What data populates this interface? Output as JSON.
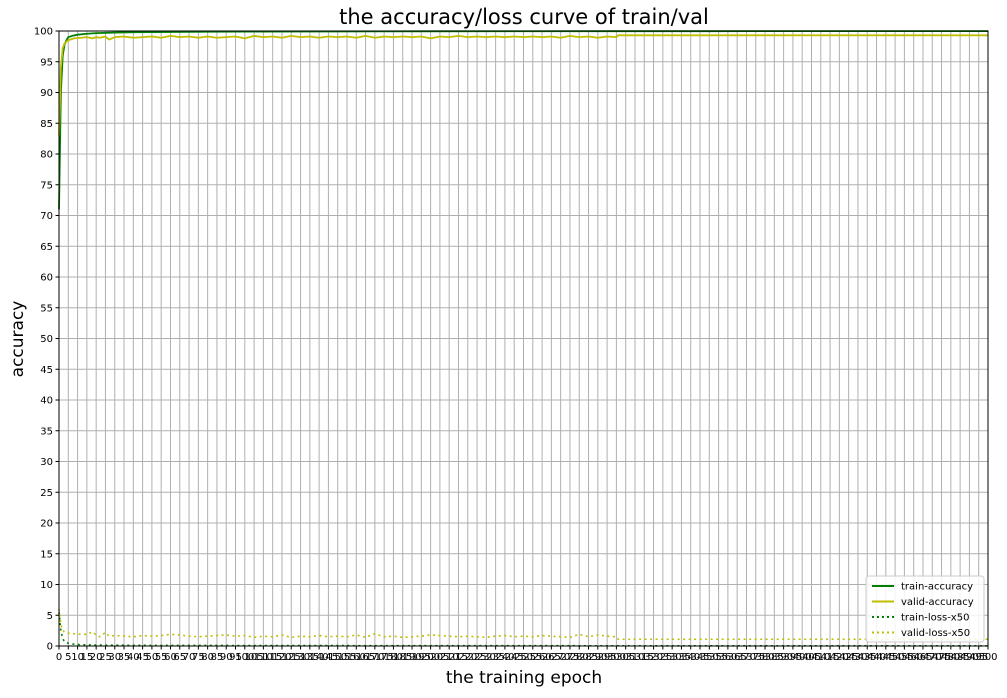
{
  "chart_data": {
    "type": "line",
    "title": "the accuracy/loss curve of train/val",
    "xlabel": "the training epoch",
    "ylabel": "accuracy",
    "xlim": [
      0,
      500
    ],
    "ylim": [
      0,
      100
    ],
    "x_tick_step": 5,
    "y_tick_step": 5,
    "grid": true,
    "legend_position": "bottom-right",
    "series": [
      {
        "name": "train-accuracy",
        "color": "#008000",
        "style": "solid",
        "x": [
          0,
          1,
          2,
          3,
          4,
          5,
          7,
          10,
          15,
          20,
          30,
          40,
          60,
          80,
          100,
          150,
          200,
          250,
          300,
          350,
          400,
          450,
          500
        ],
        "y": [
          71,
          90,
          96,
          97.8,
          98.5,
          99.0,
          99.2,
          99.4,
          99.55,
          99.65,
          99.75,
          99.8,
          99.85,
          99.88,
          99.9,
          99.93,
          99.95,
          99.96,
          99.97,
          99.97,
          99.98,
          99.98,
          99.98
        ]
      },
      {
        "name": "valid-accuracy",
        "color": "#bfbf00",
        "style": "solid",
        "x": [
          0,
          1,
          2,
          3,
          5,
          8,
          12,
          15,
          18,
          20,
          22,
          25,
          27,
          30,
          35,
          40,
          45,
          50,
          55,
          60,
          65,
          70,
          75,
          80,
          85,
          90,
          95,
          100,
          105,
          110,
          115,
          120,
          125,
          130,
          135,
          140,
          145,
          150,
          155,
          160,
          165,
          170,
          175,
          180,
          185,
          190,
          195,
          200,
          205,
          210,
          215,
          220,
          225,
          230,
          235,
          240,
          245,
          250,
          255,
          260,
          265,
          270,
          275,
          280,
          285,
          290,
          295,
          300,
          301,
          350,
          400,
          450,
          500
        ],
        "y": [
          83,
          94,
          97.2,
          98.0,
          98.5,
          98.8,
          98.9,
          99.0,
          98.8,
          99.0,
          98.9,
          99.1,
          98.6,
          99.0,
          99.1,
          98.9,
          99.0,
          99.1,
          98.9,
          99.2,
          99.0,
          99.1,
          98.9,
          99.1,
          98.9,
          99.0,
          99.1,
          98.8,
          99.2,
          99.0,
          99.1,
          98.9,
          99.2,
          99.0,
          99.1,
          98.9,
          99.1,
          99.0,
          99.1,
          98.9,
          99.2,
          98.9,
          99.1,
          99.0,
          99.1,
          99.0,
          99.1,
          98.8,
          99.1,
          99.0,
          99.2,
          99.0,
          99.1,
          99.0,
          99.1,
          99.0,
          99.1,
          99.0,
          99.1,
          99.0,
          99.1,
          98.9,
          99.2,
          99.0,
          99.1,
          98.9,
          99.1,
          99.0,
          99.3,
          99.3,
          99.3,
          99.3,
          99.3
        ]
      },
      {
        "name": "train-loss-x50",
        "color": "#008000",
        "style": "dotted",
        "x": [
          0,
          1,
          2,
          3,
          5,
          8,
          12,
          20,
          50,
          100,
          200,
          300,
          400,
          500
        ],
        "y": [
          5.5,
          2.5,
          1.2,
          0.7,
          0.45,
          0.3,
          0.2,
          0.15,
          0.1,
          0.08,
          0.05,
          0.04,
          0.03,
          0.03
        ]
      },
      {
        "name": "valid-loss-x50",
        "color": "#bfbf00",
        "style": "dotted",
        "x": [
          0,
          1,
          2,
          3,
          5,
          8,
          12,
          15,
          18,
          20,
          22,
          25,
          27,
          30,
          35,
          40,
          45,
          50,
          55,
          60,
          65,
          70,
          75,
          80,
          85,
          90,
          95,
          100,
          105,
          110,
          115,
          120,
          125,
          130,
          135,
          140,
          145,
          150,
          155,
          160,
          165,
          170,
          175,
          180,
          185,
          190,
          195,
          200,
          205,
          210,
          215,
          220,
          225,
          230,
          235,
          240,
          245,
          250,
          255,
          260,
          265,
          270,
          275,
          280,
          285,
          290,
          295,
          300,
          301,
          350,
          400,
          450,
          500
        ],
        "y": [
          6.0,
          3.5,
          2.6,
          2.2,
          2.1,
          2.0,
          1.9,
          1.9,
          2.3,
          1.8,
          1.5,
          2.2,
          1.6,
          1.7,
          1.6,
          1.5,
          1.7,
          1.6,
          1.7,
          1.9,
          1.8,
          1.6,
          1.5,
          1.6,
          1.7,
          1.8,
          1.6,
          1.7,
          1.4,
          1.6,
          1.5,
          1.8,
          1.4,
          1.6,
          1.5,
          1.7,
          1.5,
          1.6,
          1.5,
          1.8,
          1.4,
          2.0,
          1.5,
          1.6,
          1.4,
          1.5,
          1.6,
          1.8,
          1.7,
          1.6,
          1.5,
          1.6,
          1.5,
          1.4,
          1.6,
          1.7,
          1.5,
          1.6,
          1.5,
          1.7,
          1.6,
          1.5,
          1.4,
          1.9,
          1.5,
          1.8,
          1.6,
          1.5,
          1.1,
          1.1,
          1.1,
          1.1,
          1.1
        ]
      }
    ]
  }
}
